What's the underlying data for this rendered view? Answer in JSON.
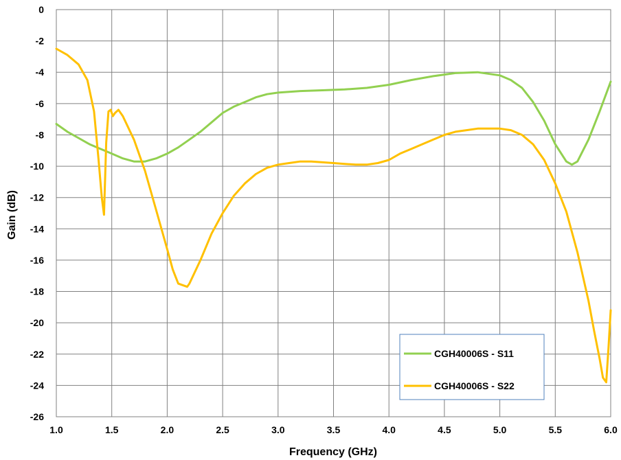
{
  "chart_data": {
    "type": "line",
    "title": "",
    "xlabel": "Frequency (GHz)",
    "ylabel": "Gain (dB)",
    "xlim": [
      1.0,
      6.0
    ],
    "ylim": [
      -26,
      0
    ],
    "xticks": [
      "1.0",
      "1.5",
      "2.0",
      "2.5",
      "3.0",
      "3.5",
      "4.0",
      "4.5",
      "5.0",
      "5.5",
      "6.0"
    ],
    "yticks": [
      "0",
      "-2",
      "-4",
      "-6",
      "-8",
      "-10",
      "-12",
      "-14",
      "-16",
      "-18",
      "-20",
      "-22",
      "-24",
      "-26"
    ],
    "grid": true,
    "legend_position": "bottom-right",
    "series": [
      {
        "name": "CGH40006S - S11",
        "color": "#92D050",
        "x": [
          1.0,
          1.1,
          1.2,
          1.3,
          1.4,
          1.5,
          1.6,
          1.7,
          1.8,
          1.9,
          2.0,
          2.1,
          2.2,
          2.3,
          2.4,
          2.5,
          2.6,
          2.7,
          2.8,
          2.9,
          3.0,
          3.2,
          3.4,
          3.6,
          3.8,
          4.0,
          4.2,
          4.4,
          4.6,
          4.8,
          5.0,
          5.1,
          5.2,
          5.3,
          5.4,
          5.5,
          5.6,
          5.65,
          5.7,
          5.8,
          5.9,
          6.0
        ],
        "y": [
          -7.3,
          -7.8,
          -8.2,
          -8.6,
          -8.9,
          -9.2,
          -9.5,
          -9.7,
          -9.7,
          -9.5,
          -9.2,
          -8.8,
          -8.3,
          -7.8,
          -7.2,
          -6.6,
          -6.2,
          -5.9,
          -5.6,
          -5.4,
          -5.3,
          -5.2,
          -5.15,
          -5.1,
          -5.0,
          -4.8,
          -4.5,
          -4.25,
          -4.05,
          -4.0,
          -4.2,
          -4.5,
          -5.0,
          -5.9,
          -7.1,
          -8.6,
          -9.7,
          -9.9,
          -9.7,
          -8.3,
          -6.5,
          -4.6
        ]
      },
      {
        "name": "CGH40006S - S22",
        "color": "#FFC000",
        "x": [
          1.0,
          1.1,
          1.2,
          1.28,
          1.34,
          1.38,
          1.41,
          1.43,
          1.45,
          1.47,
          1.49,
          1.51,
          1.53,
          1.56,
          1.6,
          1.7,
          1.8,
          1.9,
          2.0,
          2.05,
          2.1,
          2.18,
          2.2,
          2.3,
          2.4,
          2.5,
          2.6,
          2.7,
          2.8,
          2.9,
          3.0,
          3.1,
          3.2,
          3.3,
          3.4,
          3.5,
          3.6,
          3.7,
          3.8,
          3.9,
          4.0,
          4.1,
          4.2,
          4.3,
          4.4,
          4.5,
          4.6,
          4.7,
          4.8,
          4.9,
          5.0,
          5.1,
          5.2,
          5.3,
          5.4,
          5.5,
          5.6,
          5.7,
          5.8,
          5.85,
          5.9,
          5.93,
          5.96,
          5.98,
          6.0
        ],
        "y": [
          -2.5,
          -2.9,
          -3.5,
          -4.5,
          -6.5,
          -9.5,
          -12.0,
          -13.1,
          -8.5,
          -6.5,
          -6.4,
          -6.8,
          -6.6,
          -6.4,
          -6.8,
          -8.3,
          -10.3,
          -12.8,
          -15.3,
          -16.6,
          -17.5,
          -17.7,
          -17.5,
          -16.0,
          -14.3,
          -13.0,
          -11.9,
          -11.1,
          -10.5,
          -10.1,
          -9.9,
          -9.8,
          -9.7,
          -9.7,
          -9.75,
          -9.8,
          -9.85,
          -9.9,
          -9.9,
          -9.8,
          -9.6,
          -9.2,
          -8.9,
          -8.6,
          -8.3,
          -8.0,
          -7.8,
          -7.7,
          -7.6,
          -7.6,
          -7.6,
          -7.7,
          -8.0,
          -8.6,
          -9.6,
          -11.1,
          -12.9,
          -15.5,
          -18.6,
          -20.5,
          -22.3,
          -23.5,
          -23.8,
          -21.6,
          -19.2
        ]
      }
    ]
  }
}
